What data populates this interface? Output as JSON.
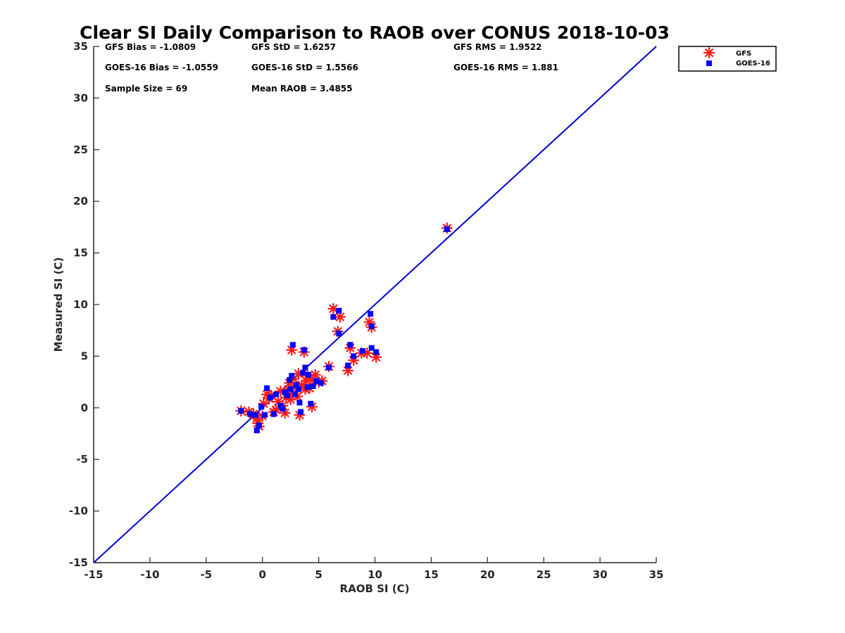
{
  "chart_data": {
    "type": "scatter",
    "title": "Clear SI Daily Comparison to RAOB over CONUS 2018-10-03",
    "xlabel": "RAOB SI (C)",
    "ylabel": "Measured SI (C)",
    "xlim": [
      -15,
      35
    ],
    "ylim": [
      -15,
      35
    ],
    "xticks": [
      "-15",
      "-10",
      "-5",
      "0",
      "5",
      "10",
      "15",
      "20",
      "25",
      "30",
      "35"
    ],
    "yticks": [
      "-15",
      "-10",
      "-5",
      "0",
      "5",
      "10",
      "15",
      "20",
      "25",
      "30",
      "35"
    ],
    "grid": false,
    "legend_position": "outside-top-right",
    "reference_line": {
      "from": [
        -15,
        -15
      ],
      "to": [
        35,
        35
      ],
      "color": "#0000d0"
    },
    "stats": [
      "GFS Bias = -1.0809",
      "GFS StD = 1.6257",
      "GFS RMS = 1.9522",
      "GOES-16 Bias = -1.0559",
      "GOES-16 StD = 1.5566",
      "GOES-16 RMS = 1.881",
      "Sample Size = 69",
      "Mean RAOB = 3.4855"
    ],
    "series": [
      {
        "name": "GFS",
        "marker": "asterisk",
        "color": "#ff1a1a",
        "points": [
          [
            -1.9,
            -0.3
          ],
          [
            -1.2,
            -0.4
          ],
          [
            -0.8,
            -0.6
          ],
          [
            -0.5,
            -1.0
          ],
          [
            -0.4,
            -1.5
          ],
          [
            -0.3,
            -1.8
          ],
          [
            0.0,
            -0.8
          ],
          [
            0.1,
            0.4
          ],
          [
            0.4,
            1.3
          ],
          [
            0.6,
            0.9
          ],
          [
            0.8,
            1.2
          ],
          [
            1.0,
            -0.4
          ],
          [
            1.2,
            -0.2
          ],
          [
            1.4,
            0.6
          ],
          [
            1.6,
            1.6
          ],
          [
            1.8,
            0.2
          ],
          [
            2.0,
            -0.5
          ],
          [
            2.1,
            1.0
          ],
          [
            2.3,
            1.8
          ],
          [
            2.4,
            2.4
          ],
          [
            2.5,
            0.8
          ],
          [
            2.6,
            5.6
          ],
          [
            2.7,
            1.4
          ],
          [
            2.8,
            2.8
          ],
          [
            3.0,
            2.0
          ],
          [
            3.1,
            1.1
          ],
          [
            3.2,
            3.3
          ],
          [
            3.3,
            -0.7
          ],
          [
            3.5,
            2.2
          ],
          [
            3.7,
            5.4
          ],
          [
            3.8,
            1.8
          ],
          [
            3.9,
            2.6
          ],
          [
            4.0,
            3.1
          ],
          [
            4.2,
            1.9
          ],
          [
            4.4,
            0.1
          ],
          [
            4.5,
            2.7
          ],
          [
            4.7,
            3.2
          ],
          [
            5.0,
            2.5
          ],
          [
            5.3,
            2.6
          ],
          [
            5.9,
            4.0
          ],
          [
            6.3,
            9.6
          ],
          [
            6.7,
            7.4
          ],
          [
            6.9,
            8.8
          ],
          [
            7.6,
            3.6
          ],
          [
            7.8,
            5.8
          ],
          [
            8.1,
            4.6
          ],
          [
            8.8,
            5.3
          ],
          [
            9.3,
            5.3
          ],
          [
            9.5,
            8.3
          ],
          [
            9.7,
            7.8
          ],
          [
            10.1,
            4.9
          ],
          [
            16.4,
            17.4
          ]
        ]
      },
      {
        "name": "GOES-16",
        "marker": "square",
        "color": "#0000ff",
        "points": [
          [
            -1.9,
            -0.3
          ],
          [
            -1.1,
            -0.6
          ],
          [
            -0.6,
            -0.7
          ],
          [
            -0.5,
            -2.2
          ],
          [
            -0.3,
            -1.7
          ],
          [
            -0.1,
            0.1
          ],
          [
            0.2,
            -0.7
          ],
          [
            0.4,
            1.9
          ],
          [
            0.7,
            1.0
          ],
          [
            1.0,
            -0.6
          ],
          [
            1.2,
            1.3
          ],
          [
            1.6,
            0.2
          ],
          [
            1.8,
            -0.1
          ],
          [
            2.0,
            1.5
          ],
          [
            2.2,
            1.2
          ],
          [
            2.4,
            2.7
          ],
          [
            2.5,
            1.8
          ],
          [
            2.6,
            3.1
          ],
          [
            2.7,
            6.1
          ],
          [
            2.9,
            1.3
          ],
          [
            3.0,
            2.2
          ],
          [
            3.2,
            1.8
          ],
          [
            3.3,
            0.5
          ],
          [
            3.4,
            -0.4
          ],
          [
            3.6,
            3.4
          ],
          [
            3.7,
            5.6
          ],
          [
            3.8,
            3.9
          ],
          [
            4.0,
            2.0
          ],
          [
            4.1,
            3.2
          ],
          [
            4.3,
            0.4
          ],
          [
            4.5,
            2.1
          ],
          [
            4.8,
            2.6
          ],
          [
            5.2,
            2.4
          ],
          [
            5.9,
            3.9
          ],
          [
            6.3,
            8.8
          ],
          [
            6.8,
            9.4
          ],
          [
            6.8,
            7.2
          ],
          [
            7.6,
            4.1
          ],
          [
            7.8,
            6.1
          ],
          [
            8.1,
            5.0
          ],
          [
            8.9,
            5.5
          ],
          [
            9.6,
            9.1
          ],
          [
            9.7,
            7.9
          ],
          [
            9.7,
            5.8
          ],
          [
            10.1,
            5.4
          ],
          [
            16.4,
            17.3
          ]
        ]
      }
    ]
  }
}
